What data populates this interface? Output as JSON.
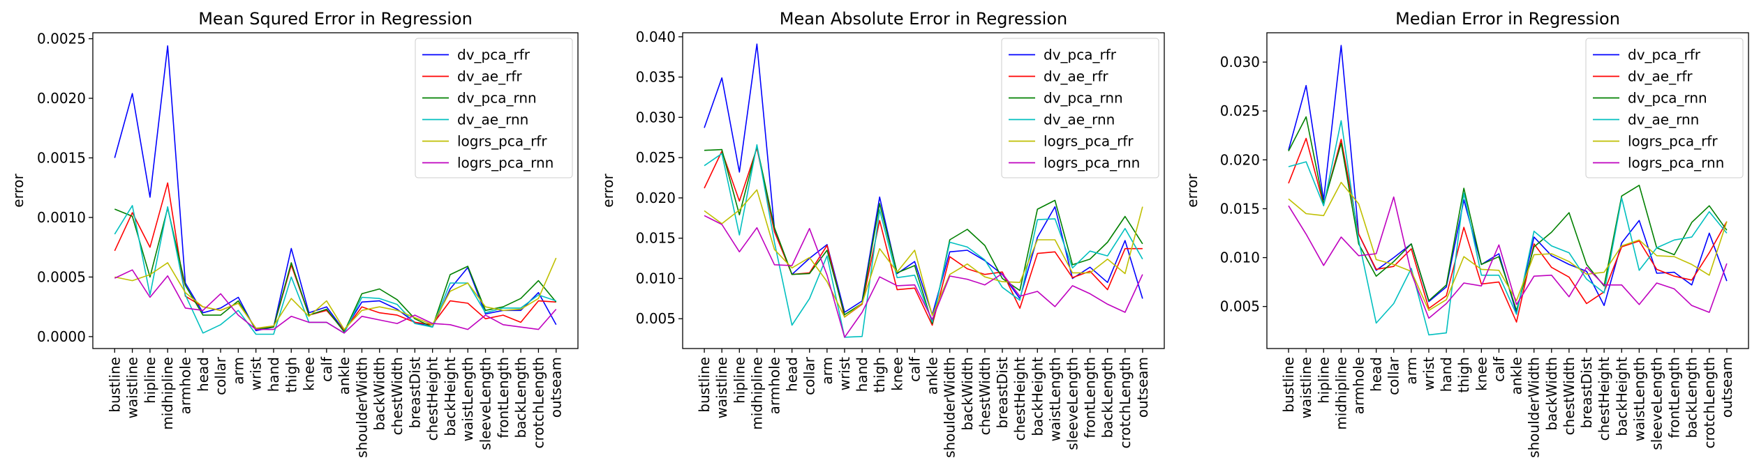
{
  "chart_data": [
    {
      "type": "line",
      "title": "Mean Squred Error in Regression",
      "xlabel": "",
      "ylabel": "error",
      "ylim": [
        -0.0001,
        0.00255
      ],
      "yticks": [
        0.0,
        0.0005,
        0.001,
        0.0015,
        0.002,
        0.0025
      ],
      "ytick_labels": [
        "0.0000",
        "0.0005",
        "0.0010",
        "0.0015",
        "0.0020",
        "0.0025"
      ],
      "legend_loc": "upper right",
      "categories": [
        "bustline",
        "waistline",
        "hipline",
        "midhipline",
        "armhole",
        "head",
        "collar",
        "arm",
        "wrist",
        "hand",
        "thigh",
        "knee",
        "calf",
        "ankle",
        "shoulderWidth",
        "backWidth",
        "chestWidth",
        "breastDist",
        "chestHeight",
        "backHeight",
        "waistLength",
        "sleeveLength",
        "frontLength",
        "backLength",
        "crotchLength",
        "outseam"
      ],
      "series": [
        {
          "name": "dv_pca_rfr",
          "color": "#0000ff",
          "values": [
            0.0015,
            0.00204,
            0.00117,
            0.00244,
            0.00045,
            0.0002,
            0.00024,
            0.00033,
            5e-05,
            8e-05,
            0.00074,
            0.0002,
            0.00025,
            5e-05,
            0.00029,
            0.0003,
            0.00023,
            0.00012,
            8e-05,
            0.0004,
            0.00058,
            0.00019,
            0.00022,
            0.00022,
            0.00037,
            0.0001
          ]
        },
        {
          "name": "dv_ae_rfr",
          "color": "#ff0000",
          "values": [
            0.00072,
            0.00104,
            0.00075,
            0.00129,
            0.00034,
            0.00025,
            0.00022,
            0.00028,
            7e-05,
            8e-05,
            0.0006,
            0.00018,
            0.00022,
            5e-05,
            0.00025,
            0.0002,
            0.00018,
            0.00012,
            0.0001,
            0.0003,
            0.00028,
            0.00015,
            0.00018,
            0.00012,
            0.0003,
            0.00029
          ]
        },
        {
          "name": "dv_pca_rnn",
          "color": "#008000",
          "values": [
            0.00107,
            0.00101,
            0.0005,
            0.00108,
            0.00043,
            0.00018,
            0.00018,
            0.0003,
            6e-05,
            8e-05,
            0.00062,
            0.00018,
            0.00023,
            4e-05,
            0.00036,
            0.0004,
            0.00031,
            0.00015,
            8e-05,
            0.00052,
            0.00059,
            0.00022,
            0.00025,
            0.00032,
            0.00047,
            0.00029
          ]
        },
        {
          "name": "dv_ae_rnn",
          "color": "#00bfbf",
          "values": [
            0.00086,
            0.0011,
            0.00035,
            0.00109,
            0.00035,
            3e-05,
            0.0001,
            0.00022,
            2e-05,
            2e-05,
            0.0005,
            0.00012,
            0.00012,
            3e-05,
            0.00033,
            0.00032,
            0.00027,
            0.00011,
            8e-05,
            0.00045,
            0.00045,
            0.0002,
            0.00024,
            0.00024,
            0.00035,
            0.0003
          ]
        },
        {
          "name": "logrs_pca_rfr",
          "color": "#bfbf00",
          "values": [
            0.0005,
            0.00047,
            0.00052,
            0.00062,
            0.00037,
            0.00025,
            0.00022,
            0.00028,
            7e-05,
            9e-05,
            0.00032,
            0.00017,
            0.0003,
            6e-05,
            0.00022,
            0.00025,
            0.00022,
            0.00016,
            0.0001,
            0.00038,
            0.00045,
            0.00025,
            0.00022,
            0.00023,
            0.00032,
            0.00066
          ]
        },
        {
          "name": "logrs_pca_rnn",
          "color": "#bf00bf",
          "values": [
            0.00049,
            0.00056,
            0.00033,
            0.00051,
            0.00024,
            0.00022,
            0.00036,
            0.00018,
            6e-05,
            6e-05,
            0.00017,
            0.00012,
            0.00012,
            3e-05,
            0.00017,
            0.00014,
            0.00011,
            0.00018,
            0.00011,
            0.0001,
            6e-05,
            0.00018,
            0.0001,
            8e-05,
            6e-05,
            0.00023
          ]
        }
      ]
    },
    {
      "type": "line",
      "title": "Mean Absolute Error in Regression",
      "xlabel": "",
      "ylabel": "error",
      "ylim": [
        0.0013,
        0.0405
      ],
      "yticks": [
        0.005,
        0.01,
        0.015,
        0.02,
        0.025,
        0.03,
        0.035,
        0.04
      ],
      "ytick_labels": [
        "0.005",
        "0.010",
        "0.015",
        "0.020",
        "0.025",
        "0.030",
        "0.035",
        "0.040"
      ],
      "legend_loc": "upper right",
      "categories": [
        "bustline",
        "waistline",
        "hipline",
        "midhipline",
        "armhole",
        "head",
        "collar",
        "arm",
        "wrist",
        "hand",
        "thigh",
        "knee",
        "calf",
        "ankle",
        "shoulderWidth",
        "backWidth",
        "chestWidth",
        "breastDist",
        "chestHeight",
        "backHeight",
        "waistLength",
        "sleeveLength",
        "frontLength",
        "backLength",
        "crotchLength",
        "outseam"
      ],
      "series": [
        {
          "name": "dv_pca_rfr",
          "color": "#0000ff",
          "values": [
            0.0287,
            0.0349,
            0.0232,
            0.0391,
            0.0162,
            0.0105,
            0.0125,
            0.0142,
            0.0058,
            0.0072,
            0.0201,
            0.0106,
            0.0121,
            0.0055,
            0.0133,
            0.0135,
            0.0122,
            0.0105,
            0.0075,
            0.0151,
            0.0189,
            0.01,
            0.0114,
            0.0095,
            0.0147,
            0.0075
          ]
        },
        {
          "name": "dv_ae_rfr",
          "color": "#ff0000",
          "values": [
            0.0212,
            0.0258,
            0.0196,
            0.0262,
            0.0158,
            0.0105,
            0.0107,
            0.0141,
            0.0052,
            0.0068,
            0.0172,
            0.0086,
            0.0088,
            0.0042,
            0.0127,
            0.0112,
            0.0105,
            0.0108,
            0.0063,
            0.0131,
            0.0133,
            0.0101,
            0.0109,
            0.0086,
            0.0137,
            0.0137
          ]
        },
        {
          "name": "dv_pca_rnn",
          "color": "#008000",
          "values": [
            0.0259,
            0.026,
            0.0179,
            0.0264,
            0.0163,
            0.0105,
            0.0106,
            0.0135,
            0.0055,
            0.0069,
            0.0193,
            0.0107,
            0.0116,
            0.0044,
            0.0148,
            0.0161,
            0.0141,
            0.01,
            0.0085,
            0.0186,
            0.0197,
            0.0117,
            0.0124,
            0.0145,
            0.0177,
            0.0143
          ]
        },
        {
          "name": "dv_ae_rnn",
          "color": "#00bfbf",
          "values": [
            0.024,
            0.0255,
            0.0154,
            0.0266,
            0.0145,
            0.0042,
            0.0075,
            0.0128,
            0.0027,
            0.0028,
            0.0185,
            0.0101,
            0.0104,
            0.0046,
            0.0145,
            0.0139,
            0.0123,
            0.0089,
            0.0073,
            0.0173,
            0.0174,
            0.0113,
            0.0134,
            0.0128,
            0.0162,
            0.0124
          ]
        },
        {
          "name": "logrs_pca_rfr",
          "color": "#bfbf00",
          "values": [
            0.0184,
            0.0168,
            0.0185,
            0.021,
            0.0136,
            0.0113,
            0.0126,
            0.0096,
            0.0052,
            0.0069,
            0.0137,
            0.0108,
            0.0135,
            0.0054,
            0.0105,
            0.0118,
            0.0102,
            0.0096,
            0.0095,
            0.0148,
            0.0148,
            0.0107,
            0.0107,
            0.0124,
            0.0106,
            0.0189
          ]
        },
        {
          "name": "logrs_pca_rnn",
          "color": "#bf00bf",
          "values": [
            0.0178,
            0.0167,
            0.0133,
            0.0163,
            0.0117,
            0.0116,
            0.0162,
            0.0104,
            0.0027,
            0.0058,
            0.0102,
            0.0091,
            0.0092,
            0.0049,
            0.0103,
            0.0099,
            0.0092,
            0.0106,
            0.0078,
            0.0084,
            0.0065,
            0.0091,
            0.0081,
            0.0068,
            0.0058,
            0.0105
          ]
        }
      ]
    },
    {
      "type": "line",
      "title": "Median Error in Regression",
      "xlabel": "",
      "ylabel": "error",
      "ylim": [
        0.0007,
        0.033
      ],
      "yticks": [
        0.005,
        0.01,
        0.015,
        0.02,
        0.025,
        0.03
      ],
      "ytick_labels": [
        "0.005",
        "0.010",
        "0.015",
        "0.020",
        "0.025",
        "0.030"
      ],
      "legend_loc": "upper right",
      "categories": [
        "bustline",
        "waistline",
        "hipline",
        "midhipline",
        "armhole",
        "head",
        "collar",
        "arm",
        "wrist",
        "hand",
        "thigh",
        "knee",
        "calf",
        "ankle",
        "shoulderWidth",
        "backWidth",
        "chestWidth",
        "breastDist",
        "chestHeight",
        "backHeight",
        "waistLength",
        "sleeveLength",
        "frontLength",
        "backLength",
        "crotchLength",
        "outseam"
      ],
      "series": [
        {
          "name": "dv_pca_rfr",
          "color": "#0000ff",
          "values": [
            0.021,
            0.0276,
            0.0159,
            0.0317,
            0.0124,
            0.0087,
            0.01,
            0.0114,
            0.0055,
            0.007,
            0.0159,
            0.0093,
            0.0104,
            0.0043,
            0.0121,
            0.0102,
            0.0093,
            0.0086,
            0.0051,
            0.0115,
            0.0138,
            0.0084,
            0.0085,
            0.0072,
            0.0125,
            0.0076
          ]
        },
        {
          "name": "dv_ae_rfr",
          "color": "#ff0000",
          "values": [
            0.0176,
            0.0222,
            0.0154,
            0.0221,
            0.0124,
            0.0088,
            0.0091,
            0.0109,
            0.0048,
            0.0061,
            0.0131,
            0.0073,
            0.0075,
            0.0034,
            0.0114,
            0.009,
            0.008,
            0.0053,
            0.0065,
            0.0111,
            0.0117,
            0.0088,
            0.0081,
            0.0077,
            0.0105,
            0.0137
          ]
        },
        {
          "name": "dv_pca_rnn",
          "color": "#008000",
          "values": [
            0.0209,
            0.0244,
            0.0155,
            0.0217,
            0.0114,
            0.0081,
            0.0096,
            0.0114,
            0.0056,
            0.0072,
            0.0171,
            0.0093,
            0.0101,
            0.0046,
            0.0111,
            0.0126,
            0.0146,
            0.0093,
            0.0071,
            0.0163,
            0.0174,
            0.011,
            0.0103,
            0.0136,
            0.0153,
            0.0128
          ]
        },
        {
          "name": "dv_ae_rnn",
          "color": "#00bfbf",
          "values": [
            0.0193,
            0.0198,
            0.0153,
            0.024,
            0.0118,
            0.0033,
            0.0053,
            0.0089,
            0.0021,
            0.0023,
            0.0166,
            0.0082,
            0.0082,
            0.0042,
            0.0127,
            0.0112,
            0.0105,
            0.0078,
            0.0064,
            0.0161,
            0.0087,
            0.011,
            0.0118,
            0.0121,
            0.0147,
            0.0125
          ]
        },
        {
          "name": "logrs_pca_rfr",
          "color": "#bfbf00",
          "values": [
            0.016,
            0.0145,
            0.0143,
            0.0177,
            0.0155,
            0.0098,
            0.0093,
            0.0086,
            0.0046,
            0.0057,
            0.0101,
            0.0088,
            0.0087,
            0.0056,
            0.0103,
            0.0104,
            0.0096,
            0.0083,
            0.0085,
            0.0112,
            0.0118,
            0.0102,
            0.0101,
            0.0093,
            0.0082,
            0.0137
          ]
        },
        {
          "name": "logrs_pca_rnn",
          "color": "#bf00bf",
          "values": [
            0.0153,
            0.0124,
            0.0092,
            0.0121,
            0.0102,
            0.0104,
            0.0162,
            0.0084,
            0.0038,
            0.0053,
            0.0074,
            0.0071,
            0.0113,
            0.0052,
            0.0081,
            0.0082,
            0.006,
            0.009,
            0.0072,
            0.0072,
            0.0052,
            0.0074,
            0.0068,
            0.0051,
            0.0044,
            0.0094
          ]
        }
      ]
    }
  ]
}
